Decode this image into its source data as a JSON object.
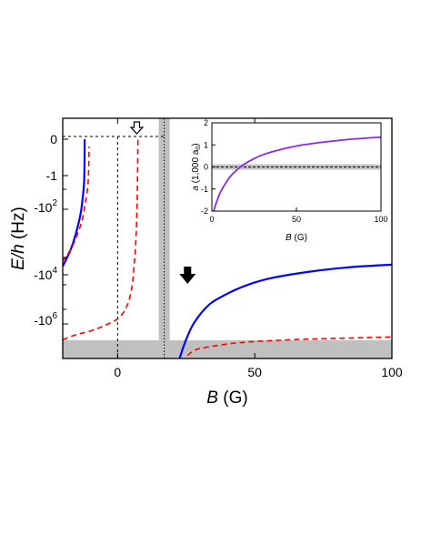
{
  "chart_data": [
    {
      "type": "line",
      "xlabel": "B (G)",
      "ylabel": "E/h (Hz)",
      "xlim": [
        -20,
        100
      ],
      "y_scale": "signed-log",
      "x_ticks": [
        {
          "v": 0,
          "label": "0"
        },
        {
          "v": 50,
          "label": "50"
        },
        {
          "v": 100,
          "label": "100"
        }
      ],
      "y_ticks": [
        {
          "label": "0"
        },
        {
          "label": "-1"
        },
        {
          "label": "-10",
          "sup": "2"
        },
        {
          "label": "-10",
          "sup": "4"
        },
        {
          "label": "-10",
          "sup": "6"
        }
      ],
      "shaded_regions": [
        {
          "axis": "x",
          "from": 15,
          "to": 19,
          "color": "#c0c0c0"
        },
        {
          "axis": "y",
          "label": "bottom band",
          "color": "#c0c0c0"
        }
      ],
      "reference_lines": [
        {
          "axis": "x",
          "value": 0,
          "style": "dashed"
        },
        {
          "axis": "x",
          "value": 17,
          "style": "dotted"
        },
        {
          "axis": "y",
          "value": 0,
          "style": "dashed"
        }
      ],
      "annotations": [
        {
          "kind": "hollow-arrow",
          "at_x": 7,
          "points": "down"
        },
        {
          "kind": "solid-arrow",
          "at_x": 25.5,
          "points": "down"
        }
      ],
      "series": [
        {
          "color": "#0000ff",
          "style": "solid",
          "branch": "left",
          "points": [
            [
              -20,
              -3.6
            ],
            [
              -17,
              -3.1
            ],
            [
              -15,
              -2.6
            ],
            [
              -13.5,
              -2.1
            ],
            [
              -12.8,
              -1.7
            ],
            [
              -12.3,
              -1.3
            ],
            [
              -12.1,
              -0.9
            ],
            [
              -12.0,
              0
            ]
          ]
        },
        {
          "color": "#0000ff",
          "style": "solid",
          "branch": "right",
          "points": [
            [
              16.5,
              -8.6
            ],
            [
              18,
              -7.9
            ],
            [
              20,
              -7.1
            ],
            [
              22,
              -6.4
            ],
            [
              24,
              -5.9
            ],
            [
              26,
              -5.5
            ],
            [
              28,
              -5.2
            ],
            [
              32,
              -4.8
            ],
            [
              36,
              -4.55
            ],
            [
              45,
              -4.2
            ],
            [
              55,
              -3.95
            ],
            [
              70,
              -3.75
            ],
            [
              85,
              -3.62
            ],
            [
              100,
              -3.55
            ]
          ]
        },
        {
          "color": "#ff0000",
          "style": "dashed",
          "branch": "left",
          "points": [
            [
              -20,
              -3.45
            ],
            [
              -17,
              -3.1
            ],
            [
              -15,
              -2.75
            ],
            [
              -13,
              -2.3
            ],
            [
              -12,
              -1.9
            ],
            [
              -11,
              -1.4
            ],
            [
              -10.6,
              -0.9
            ],
            [
              -10.4,
              -0.2
            ]
          ]
        },
        {
          "color": "#ff0000",
          "style": "dashed",
          "branch": "middle",
          "points": [
            [
              -20,
              -5.7
            ],
            [
              -15,
              -5.55
            ],
            [
              -10,
              -5.45
            ],
            [
              -5,
              -5.3
            ],
            [
              0,
              -5.1
            ],
            [
              3,
              -4.8
            ],
            [
              5,
              -4.3
            ],
            [
              6,
              -3.6
            ],
            [
              6.7,
              -2.8
            ],
            [
              7.1,
              -1.8
            ],
            [
              7.3,
              -0.8
            ],
            [
              7.4,
              0
            ]
          ]
        },
        {
          "color": "#ff0000",
          "style": "dashed",
          "branch": "right",
          "points": [
            [
              25.5,
              -6.15
            ],
            [
              28,
              -6.0
            ],
            [
              32,
              -5.92
            ],
            [
              40,
              -5.82
            ],
            [
              50,
              -5.75
            ],
            [
              70,
              -5.68
            ],
            [
              100,
              -5.62
            ]
          ]
        }
      ]
    },
    {
      "type": "line",
      "xlabel": "B (G)",
      "ylabel": "a (1,000 a0)",
      "xlim": [
        0,
        100
      ],
      "ylim": [
        -2,
        2
      ],
      "x_ticks": [
        {
          "v": 0,
          "label": "0"
        },
        {
          "v": 50,
          "label": "50"
        },
        {
          "v": 100,
          "label": "100"
        }
      ],
      "y_ticks": [
        {
          "v": 2,
          "label": "2"
        },
        {
          "v": 1,
          "label": "1"
        },
        {
          "v": 0,
          "label": "0"
        },
        {
          "v": -1,
          "label": "-1"
        },
        {
          "v": -2,
          "label": "-2"
        }
      ],
      "shaded_regions": [
        {
          "axis": "y",
          "from": -0.12,
          "to": 0.12,
          "color": "#c0c0c0"
        }
      ],
      "reference_lines": [
        {
          "axis": "y",
          "value": 0,
          "style": "dashed"
        }
      ],
      "series": [
        {
          "color": "#8a2be2",
          "style": "solid",
          "points": [
            [
              1,
              -2.0
            ],
            [
              3,
              -1.55
            ],
            [
              5,
              -1.15
            ],
            [
              8,
              -0.75
            ],
            [
              11,
              -0.42
            ],
            [
              15,
              -0.12
            ],
            [
              19,
              0.12
            ],
            [
              25,
              0.38
            ],
            [
              30,
              0.55
            ],
            [
              40,
              0.78
            ],
            [
              50,
              0.95
            ],
            [
              60,
              1.07
            ],
            [
              70,
              1.16
            ],
            [
              80,
              1.24
            ],
            [
              90,
              1.3
            ],
            [
              100,
              1.35
            ]
          ]
        }
      ]
    }
  ]
}
